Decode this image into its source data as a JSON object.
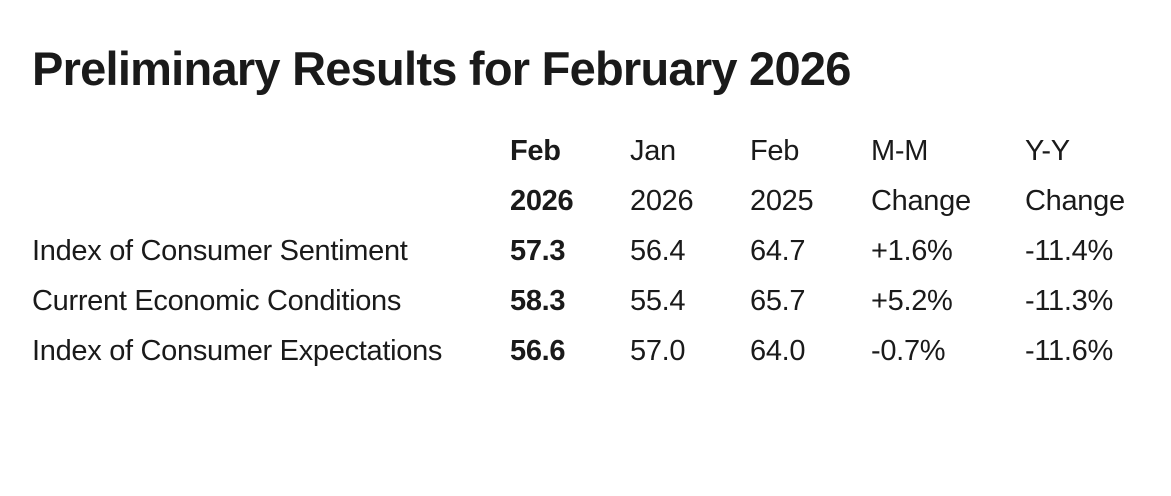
{
  "page": {
    "background_color": "#ffffff",
    "text_color": "#1a1a1a"
  },
  "title": "Preliminary Results for February 2026",
  "table": {
    "label_column": "",
    "header_line1": [
      "Feb",
      "Jan",
      "Feb",
      "M-M",
      "Y-Y"
    ],
    "header_line2": [
      "2026",
      "2026",
      "2025",
      "Change",
      "Change"
    ],
    "rows": [
      {
        "label": "Index of Consumer Sentiment",
        "values": [
          "57.3",
          "56.4",
          "64.7",
          "+1.6%",
          "-11.4%"
        ]
      },
      {
        "label": "Current Economic Conditions",
        "values": [
          "58.3",
          "55.4",
          "65.7",
          "+5.2%",
          "-11.3%"
        ]
      },
      {
        "label": "Index of Consumer Expectations",
        "values": [
          "56.6",
          "57.0",
          "64.0",
          "-0.7%",
          "-11.6%"
        ]
      }
    ]
  },
  "chart_data": {
    "type": "table",
    "title": "Preliminary Results for February 2026",
    "columns": [
      "",
      "Feb 2026",
      "Jan 2026",
      "Feb 2025",
      "M-M Change",
      "Y-Y Change"
    ],
    "rows": [
      [
        "Index of Consumer Sentiment",
        57.3,
        56.4,
        64.7,
        "+1.6%",
        "-11.4%"
      ],
      [
        "Current Economic Conditions",
        58.3,
        55.4,
        65.7,
        "+5.2%",
        "-11.3%"
      ],
      [
        "Index of Consumer Expectations",
        56.6,
        57.0,
        64.0,
        "-0.7%",
        "-11.6%"
      ]
    ],
    "notes": {
      "emphasized_column": "Feb 2026",
      "layout": "plain text table, no gridlines, left-aligned columns"
    }
  }
}
